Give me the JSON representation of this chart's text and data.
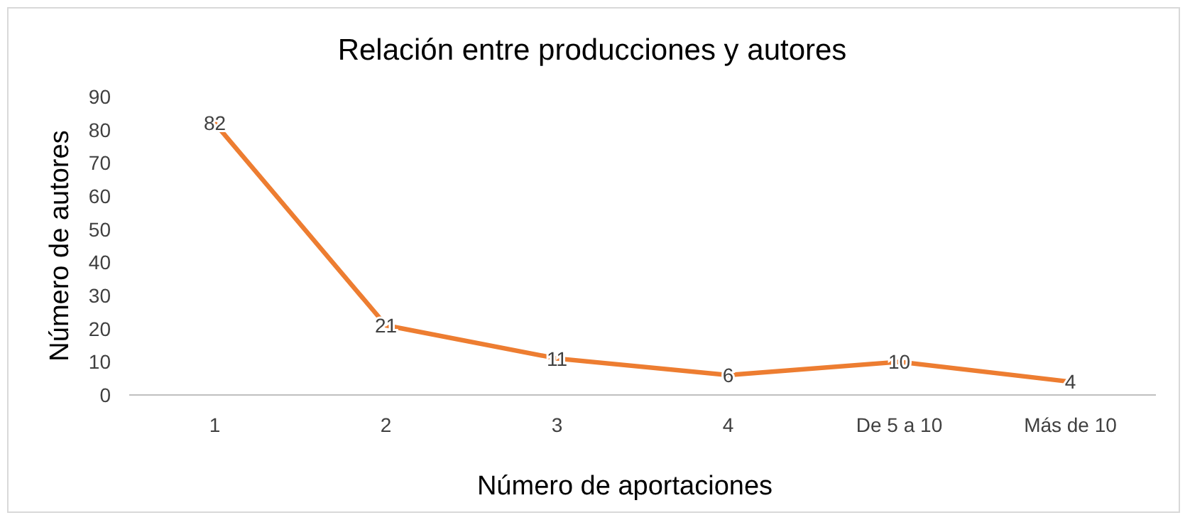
{
  "chart_data": {
    "type": "line",
    "title": "Relación entre producciones y autores",
    "xlabel": "Número de aportaciones",
    "ylabel": "Número de autores",
    "categories": [
      "1",
      "2",
      "3",
      "4",
      "De 5 a 10",
      "Más de 10"
    ],
    "series": [
      {
        "color": "#ed7d31",
        "values": [
          82,
          21,
          11,
          6,
          10,
          4
        ]
      }
    ],
    "ylim": [
      0,
      90
    ],
    "yticks": [
      0,
      10,
      20,
      30,
      40,
      50,
      60,
      70,
      80,
      90
    ],
    "grid": false,
    "data_labels": true,
    "marker": "none",
    "line_style": "solid"
  }
}
